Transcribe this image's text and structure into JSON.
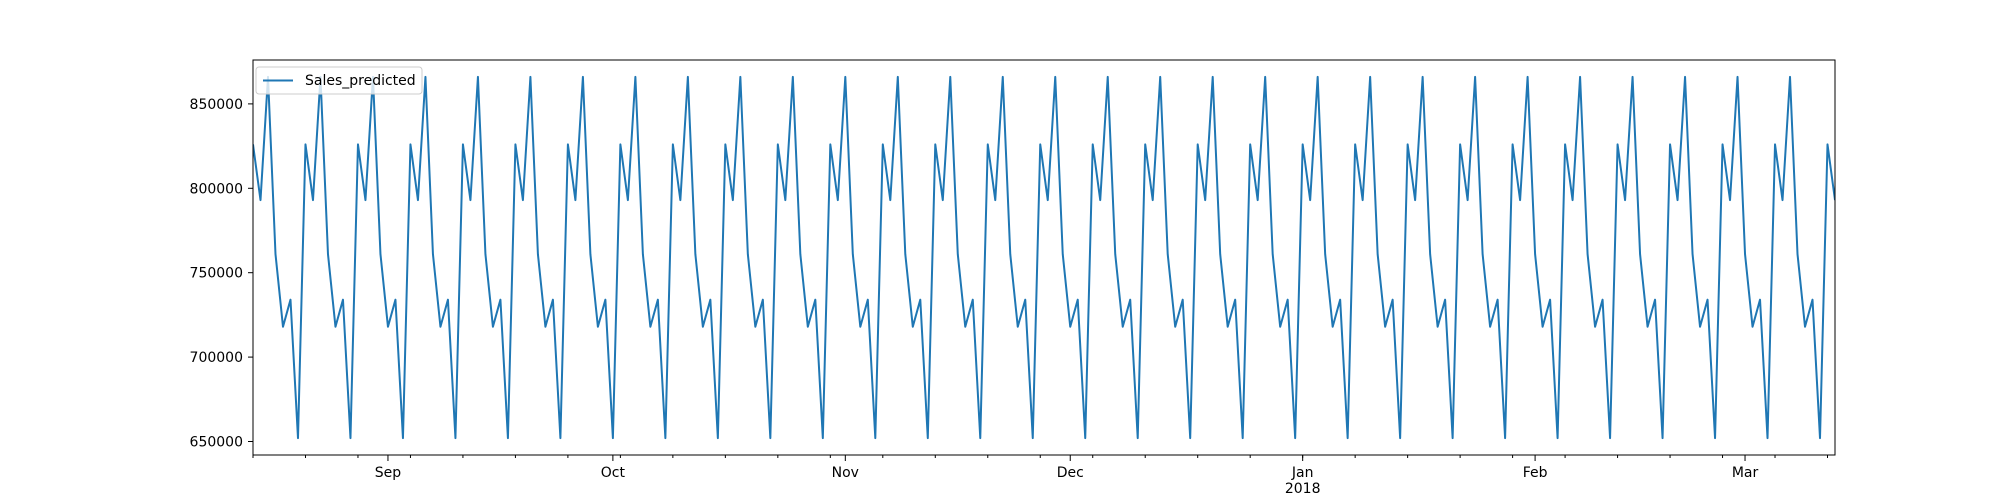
{
  "chart_data": {
    "type": "line",
    "title": "",
    "xlabel": "",
    "ylabel": "",
    "x_start": "2017-08-14",
    "x_end": "2018-03-13",
    "xlim": [
      "2017-08-14",
      "2018-03-13"
    ],
    "ylim": [
      642000,
      876000
    ],
    "weekly_pattern": [
      826000,
      793000,
      866000,
      761000,
      718000,
      734000,
      652000
    ],
    "yticks": [
      650000,
      700000,
      750000,
      800000,
      850000
    ],
    "ytick_labels": [
      "650000",
      "700000",
      "750000",
      "800000",
      "850000"
    ],
    "xticks": [
      {
        "date": "2017-09-01",
        "label": "Sep",
        "sublabel": ""
      },
      {
        "date": "2017-10-01",
        "label": "Oct",
        "sublabel": ""
      },
      {
        "date": "2017-11-01",
        "label": "Nov",
        "sublabel": ""
      },
      {
        "date": "2017-12-01",
        "label": "Dec",
        "sublabel": ""
      },
      {
        "date": "2018-01-01",
        "label": "Jan",
        "sublabel": "2018"
      },
      {
        "date": "2018-02-01",
        "label": "Feb",
        "sublabel": ""
      },
      {
        "date": "2018-03-01",
        "label": "Mar",
        "sublabel": ""
      }
    ],
    "grid": false,
    "legend_position": "upper-left",
    "series": [
      {
        "name": "Sales_predicted",
        "color": "#1f77b4"
      }
    ]
  }
}
